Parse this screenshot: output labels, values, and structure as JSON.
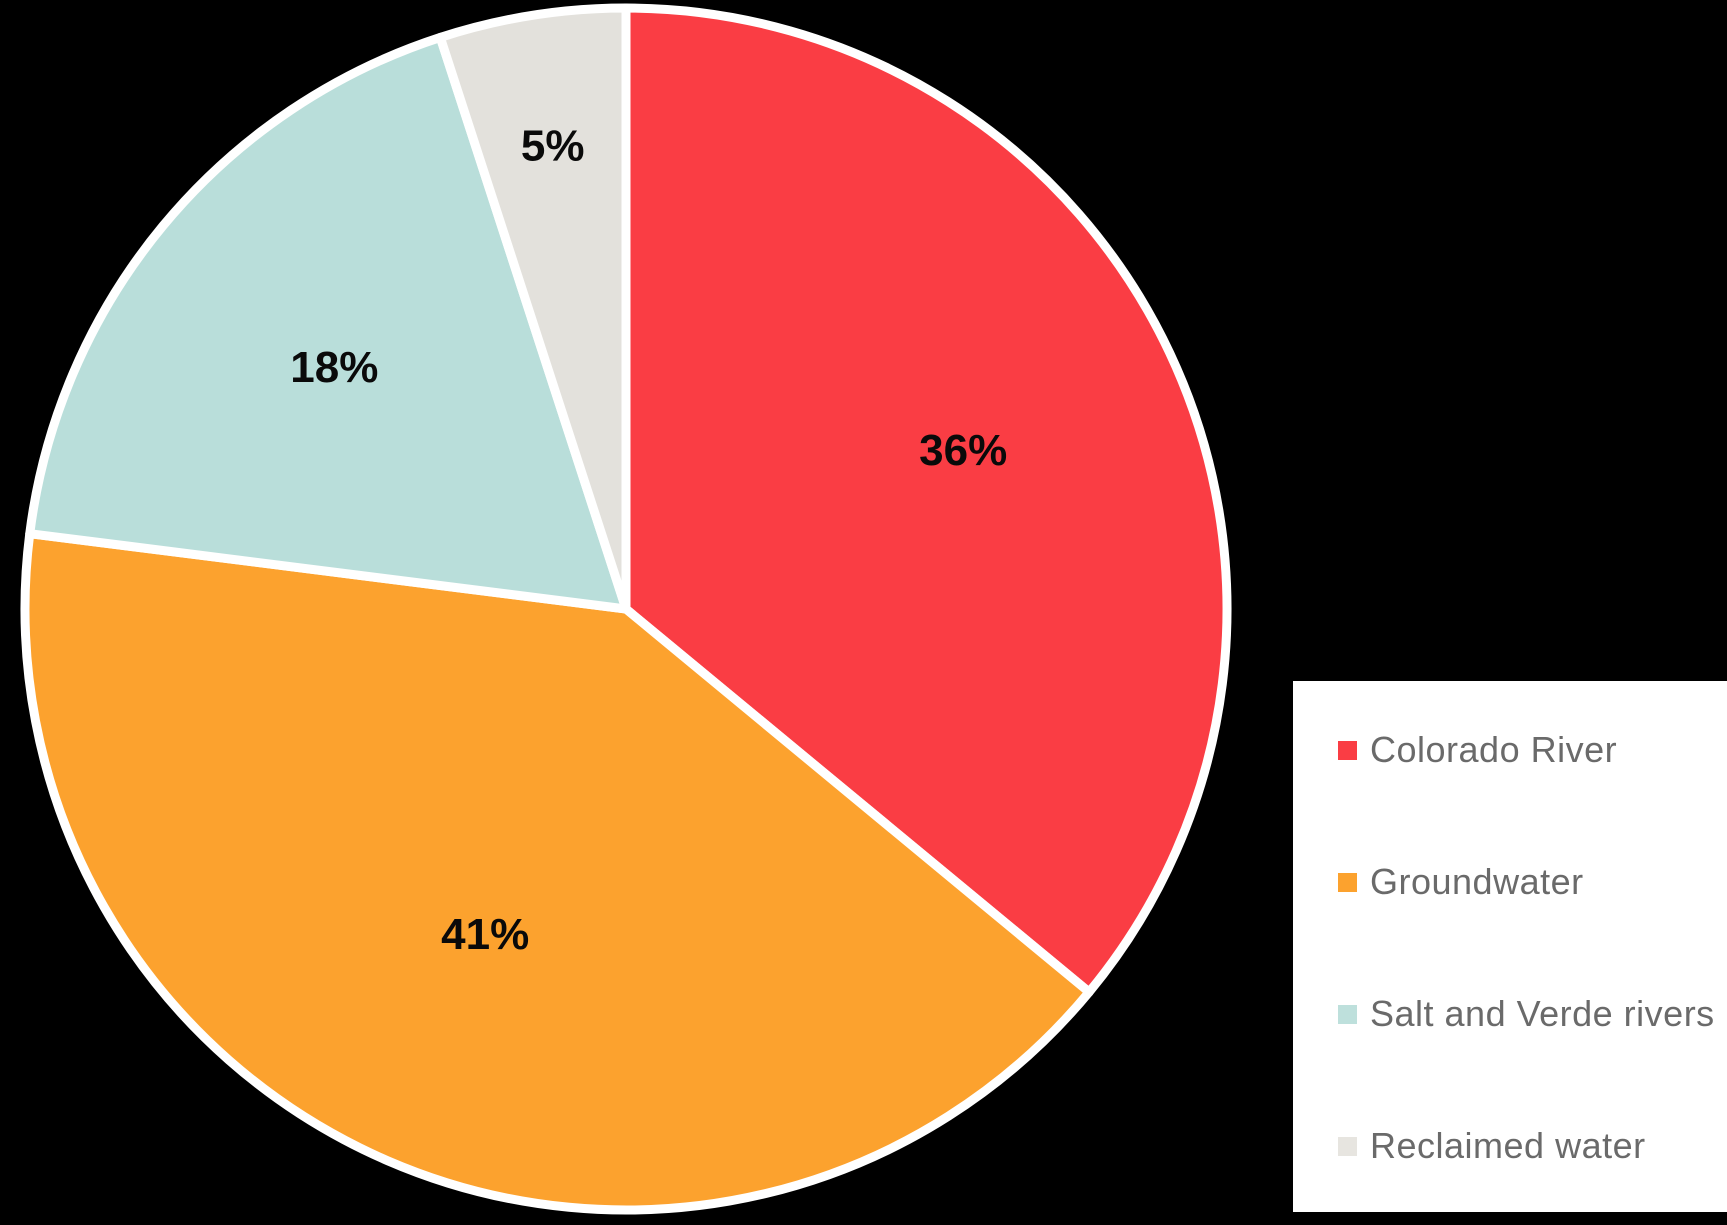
{
  "background_color": "#000000",
  "chart_data": {
    "type": "pie",
    "title": "",
    "categories": [
      "Colorado River",
      "Groundwater",
      "Salt and Verde rivers",
      "Reclaimed water"
    ],
    "values": [
      36,
      41,
      18,
      5
    ],
    "labels": [
      "36%",
      "41%",
      "18%",
      "5%"
    ],
    "unit": "%",
    "colors": [
      "#FA3D44",
      "#FCA22E",
      "#B9DEDA",
      "#E3E1DC"
    ],
    "slice_separator_color": "#FFFFFF",
    "percent_label_color": "#0A0A0A",
    "start_angle_deg": 0,
    "direction": "clockwise",
    "legend_position": "right"
  },
  "legend": {
    "background": "#FFFFFF",
    "text_color": "#6A6A6A",
    "items": [
      {
        "label": "Colorado River",
        "color": "#FA3D44"
      },
      {
        "label": "Groundwater",
        "color": "#FCA22E"
      },
      {
        "label": "Salt and Verde rivers",
        "color": "#BEE0DC"
      },
      {
        "label": "Reclaimed water",
        "color": "#E7E5E0"
      }
    ]
  }
}
